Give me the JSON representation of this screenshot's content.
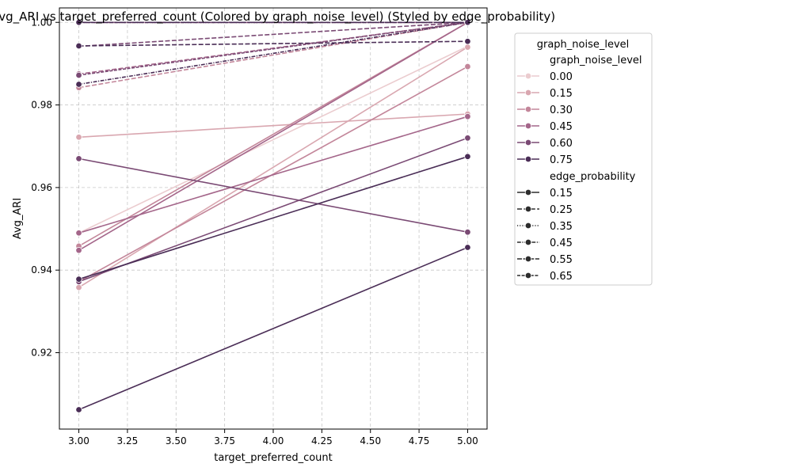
{
  "chart_data": {
    "type": "line",
    "title": "Avg_ARI vs target_preferred_count (Colored by graph_noise_level) (Styled by edge_probability)",
    "xlabel": "target_preferred_count",
    "ylabel": "Avg_ARI",
    "xlim": [
      2.9,
      5.1
    ],
    "ylim": [
      0.9015,
      1.0035
    ],
    "xticks": [
      3.0,
      3.25,
      3.5,
      3.75,
      4.0,
      4.25,
      4.5,
      4.75,
      5.0
    ],
    "xtick_labels": [
      "3.00",
      "3.25",
      "3.50",
      "3.75",
      "4.00",
      "4.25",
      "4.50",
      "4.75",
      "5.00"
    ],
    "yticks": [
      0.92,
      0.94,
      0.96,
      0.98,
      1.0
    ],
    "ytick_labels": [
      "0.92",
      "0.94",
      "0.96",
      "0.98",
      "1.00"
    ],
    "grid": true,
    "legend_placement": "outside-right",
    "hue_title": "graph_noise_level",
    "hue_levels": [
      {
        "label": "0.00",
        "color": "#ebcccf"
      },
      {
        "label": "0.15",
        "color": "#d9a7b0"
      },
      {
        "label": "0.30",
        "color": "#c3869a"
      },
      {
        "label": "0.45",
        "color": "#a4668a"
      },
      {
        "label": "0.60",
        "color": "#7a4a74"
      },
      {
        "label": "0.75",
        "color": "#4a2d56"
      }
    ],
    "style_title": "edge_probability",
    "style_levels": [
      {
        "label": "0.15",
        "dash": ""
      },
      {
        "label": "0.25",
        "dash": "6 2.4"
      },
      {
        "label": "0.35",
        "dash": "1.2 2"
      },
      {
        "label": "0.45",
        "dash": "4.8 1.6 1.2 1.6"
      },
      {
        "label": "0.55",
        "dash": "6 1.6"
      },
      {
        "label": "0.65",
        "dash": "4 1.6"
      }
    ],
    "series": [
      {
        "hue": 0,
        "style": 0,
        "x": [
          3.0,
          5.0
        ],
        "y": [
          0.949,
          0.9942
        ]
      },
      {
        "hue": 1,
        "style": 0,
        "x": [
          3.0,
          5.0
        ],
        "y": [
          0.9358,
          0.994
        ]
      },
      {
        "hue": 1,
        "style": 0,
        "x": [
          3.0,
          5.0
        ],
        "y": [
          0.9722,
          0.9778
        ]
      },
      {
        "hue": 2,
        "style": 0,
        "x": [
          3.0,
          5.0
        ],
        "y": [
          0.9458,
          1.0
        ]
      },
      {
        "hue": 2,
        "style": 0,
        "x": [
          3.0,
          5.0
        ],
        "y": [
          0.9372,
          0.9893
        ]
      },
      {
        "hue": 3,
        "style": 0,
        "x": [
          3.0,
          5.0
        ],
        "y": [
          0.9448,
          1.0
        ]
      },
      {
        "hue": 3,
        "style": 0,
        "x": [
          3.0,
          5.0
        ],
        "y": [
          0.949,
          0.9772
        ]
      },
      {
        "hue": 4,
        "style": 0,
        "x": [
          3.0,
          5.0
        ],
        "y": [
          0.9372,
          0.972
        ]
      },
      {
        "hue": 4,
        "style": 0,
        "x": [
          3.0,
          5.0
        ],
        "y": [
          0.967,
          0.9492
        ]
      },
      {
        "hue": 5,
        "style": 0,
        "x": [
          3.0,
          5.0
        ],
        "y": [
          0.9062,
          0.9455
        ]
      },
      {
        "hue": 5,
        "style": 0,
        "x": [
          3.0,
          5.0
        ],
        "y": [
          0.9378,
          0.9675
        ]
      },
      {
        "hue": 0,
        "style": 1,
        "x": [
          3.0,
          5.0
        ],
        "y": [
          1.0,
          1.0
        ]
      },
      {
        "hue": 2,
        "style": 1,
        "x": [
          3.0,
          5.0
        ],
        "y": [
          0.9842,
          1.0
        ]
      },
      {
        "hue": 3,
        "style": 1,
        "x": [
          3.0,
          5.0
        ],
        "y": [
          0.9875,
          1.0
        ]
      },
      {
        "hue": 4,
        "style": 1,
        "x": [
          3.0,
          5.0
        ],
        "y": [
          0.9942,
          1.0
        ]
      },
      {
        "hue": 5,
        "style": 1,
        "x": [
          3.0,
          5.0
        ],
        "y": [
          0.9943,
          0.9954
        ]
      },
      {
        "hue": 1,
        "style": 2,
        "x": [
          3.0,
          5.0
        ],
        "y": [
          1.0,
          1.0
        ]
      },
      {
        "hue": 4,
        "style": 2,
        "x": [
          3.0,
          5.0
        ],
        "y": [
          1.0,
          1.0
        ]
      },
      {
        "hue": 3,
        "style": 3,
        "x": [
          3.0,
          5.0
        ],
        "y": [
          1.0,
          1.0
        ]
      },
      {
        "hue": 5,
        "style": 3,
        "x": [
          3.0,
          5.0
        ],
        "y": [
          0.985,
          1.0
        ]
      },
      {
        "hue": 5,
        "style": 4,
        "x": [
          3.0,
          5.0
        ],
        "y": [
          1.0,
          1.0
        ]
      },
      {
        "hue": 4,
        "style": 5,
        "x": [
          3.0,
          5.0
        ],
        "y": [
          0.9872,
          1.0
        ]
      },
      {
        "hue": 5,
        "style": 5,
        "x": [
          3.0,
          5.0
        ],
        "y": [
          1.0,
          1.0
        ]
      }
    ]
  }
}
